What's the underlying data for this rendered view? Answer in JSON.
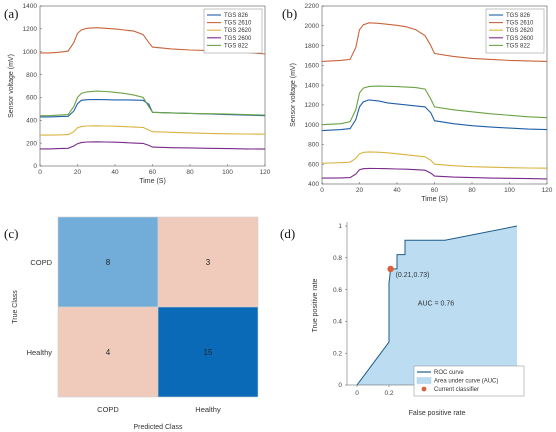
{
  "panel_labels": [
    "(a)",
    "(b)",
    "(c)",
    "(d)"
  ],
  "colors": {
    "TGS 826": "#1f5fa8",
    "TGS 2610": "#c8643a",
    "TGS 2620": "#d8b340",
    "TGS 2600": "#7a2a8a",
    "TGS 822": "#6aa344",
    "cm_high": "#0a6ab8",
    "cm_mid": "#72acd8",
    "cm_low": "#f0cbbb",
    "roc_line": "#1e5c8a",
    "auc_fill": "#bcdcf2",
    "classifier": "#d9603b"
  },
  "chart_data": [
    {
      "type": "line",
      "panel": "(a)",
      "xlabel": "Time (S)",
      "ylabel": "Sensor voltage (mV)",
      "xlim": [
        0,
        120
      ],
      "ylim": [
        0,
        1400
      ],
      "xticks": [
        0,
        20,
        40,
        60,
        80,
        100,
        120
      ],
      "yticks": [
        0,
        200,
        400,
        600,
        800,
        1000,
        1200,
        1400
      ],
      "legend": "top-right",
      "series": [
        {
          "name": "TGS 826",
          "x": [
            0,
            5,
            10,
            15,
            18,
            20,
            22,
            25,
            30,
            35,
            40,
            45,
            50,
            55,
            58,
            60,
            70,
            80,
            90,
            100,
            110,
            120
          ],
          "y": [
            430,
            430,
            432,
            435,
            480,
            545,
            575,
            580,
            582,
            580,
            578,
            578,
            577,
            575,
            540,
            470,
            465,
            460,
            455,
            450,
            445,
            440
          ]
        },
        {
          "name": "TGS 2610",
          "x": [
            0,
            5,
            10,
            15,
            18,
            20,
            22,
            25,
            30,
            35,
            40,
            45,
            50,
            55,
            58,
            60,
            70,
            80,
            90,
            100,
            110,
            120
          ],
          "y": [
            990,
            990,
            995,
            1005,
            1080,
            1160,
            1190,
            1205,
            1210,
            1205,
            1200,
            1190,
            1180,
            1150,
            1080,
            1040,
            1025,
            1015,
            1010,
            1005,
            995,
            980
          ]
        },
        {
          "name": "TGS 2620",
          "x": [
            0,
            5,
            10,
            15,
            18,
            20,
            22,
            25,
            30,
            35,
            40,
            45,
            50,
            55,
            58,
            60,
            70,
            80,
            90,
            100,
            110,
            120
          ],
          "y": [
            270,
            270,
            272,
            275,
            300,
            335,
            345,
            350,
            352,
            350,
            348,
            345,
            340,
            338,
            315,
            300,
            295,
            290,
            285,
            282,
            280,
            278
          ]
        },
        {
          "name": "TGS 2600",
          "x": [
            0,
            5,
            10,
            15,
            18,
            20,
            22,
            25,
            30,
            35,
            40,
            45,
            50,
            55,
            58,
            60,
            70,
            80,
            90,
            100,
            110,
            120
          ],
          "y": [
            150,
            150,
            152,
            155,
            175,
            195,
            205,
            210,
            212,
            210,
            208,
            205,
            200,
            198,
            180,
            165,
            160,
            158,
            155,
            152,
            150,
            148
          ]
        },
        {
          "name": "TGS 822",
          "x": [
            0,
            5,
            10,
            15,
            18,
            20,
            22,
            25,
            30,
            35,
            40,
            45,
            50,
            55,
            58,
            60,
            70,
            80,
            90,
            100,
            110,
            120
          ],
          "y": [
            440,
            440,
            445,
            450,
            520,
            600,
            635,
            648,
            655,
            652,
            645,
            635,
            620,
            600,
            520,
            470,
            465,
            460,
            458,
            455,
            450,
            445
          ]
        }
      ]
    },
    {
      "type": "line",
      "panel": "(b)",
      "xlabel": "Time (S)",
      "ylabel": "Sensor voltage (mV)",
      "xlim": [
        0,
        120
      ],
      "ylim": [
        400,
        2200
      ],
      "xticks": [
        0,
        20,
        40,
        60,
        80,
        100,
        120
      ],
      "yticks": [
        400,
        600,
        800,
        1000,
        1200,
        1400,
        1600,
        1800,
        2000,
        2200
      ],
      "legend": "top-right",
      "series": [
        {
          "name": "TGS 826",
          "x": [
            0,
            5,
            10,
            15,
            18,
            20,
            22,
            25,
            30,
            35,
            40,
            45,
            50,
            55,
            58,
            60,
            70,
            80,
            90,
            100,
            110,
            120
          ],
          "y": [
            940,
            945,
            950,
            960,
            1050,
            1180,
            1230,
            1250,
            1240,
            1220,
            1210,
            1200,
            1190,
            1180,
            1120,
            1040,
            1010,
            990,
            975,
            965,
            955,
            950
          ]
        },
        {
          "name": "TGS 2610",
          "x": [
            0,
            5,
            10,
            15,
            18,
            20,
            22,
            25,
            30,
            35,
            40,
            45,
            50,
            55,
            58,
            60,
            70,
            80,
            90,
            100,
            110,
            120
          ],
          "y": [
            1640,
            1645,
            1650,
            1660,
            1780,
            1960,
            2010,
            2030,
            2025,
            2015,
            2005,
            1990,
            1960,
            1900,
            1800,
            1720,
            1690,
            1670,
            1660,
            1650,
            1645,
            1640
          ]
        },
        {
          "name": "TGS 2620",
          "x": [
            0,
            5,
            10,
            15,
            18,
            20,
            22,
            25,
            30,
            35,
            40,
            45,
            50,
            55,
            58,
            60,
            70,
            80,
            90,
            100,
            110,
            120
          ],
          "y": [
            610,
            612,
            615,
            620,
            660,
            705,
            720,
            725,
            722,
            715,
            705,
            695,
            685,
            675,
            640,
            600,
            585,
            575,
            570,
            565,
            562,
            560
          ]
        },
        {
          "name": "TGS 2600",
          "x": [
            0,
            5,
            10,
            15,
            18,
            20,
            22,
            25,
            30,
            35,
            40,
            45,
            50,
            55,
            58,
            60,
            70,
            80,
            90,
            100,
            110,
            120
          ],
          "y": [
            460,
            460,
            462,
            465,
            500,
            545,
            555,
            558,
            557,
            555,
            552,
            550,
            545,
            540,
            510,
            480,
            470,
            465,
            460,
            458,
            455,
            452
          ]
        },
        {
          "name": "TGS 822",
          "x": [
            0,
            5,
            10,
            15,
            18,
            20,
            22,
            25,
            30,
            35,
            40,
            45,
            50,
            55,
            58,
            60,
            70,
            80,
            90,
            100,
            110,
            120
          ],
          "y": [
            1000,
            1005,
            1010,
            1030,
            1150,
            1320,
            1370,
            1385,
            1390,
            1388,
            1385,
            1380,
            1375,
            1360,
            1260,
            1180,
            1150,
            1130,
            1110,
            1095,
            1080,
            1070
          ]
        }
      ]
    },
    {
      "type": "heatmap",
      "panel": "(c)",
      "xlabel": "Predicted Class",
      "ylabel": "True Class",
      "categories": [
        "COPD",
        "Healthy"
      ],
      "values": [
        [
          8,
          3
        ],
        [
          4,
          15
        ]
      ]
    },
    {
      "type": "line",
      "panel": "(d)",
      "xlabel": "False positive rate",
      "ylabel": "True positive rate",
      "xlim": [
        0,
        1
      ],
      "ylim": [
        0,
        1
      ],
      "xticks": [
        0,
        0.2,
        0.4,
        0.6,
        0.8,
        1
      ],
      "xtick_labels": [
        "0",
        "0.2",
        "0.4",
        "0.6",
        "0.8",
        "1"
      ],
      "yticks": [
        0,
        0.2,
        0.4,
        0.6,
        0.8,
        1
      ],
      "ytick_labels": [
        "0",
        "0.2",
        "0.4",
        "0.6",
        "0.8",
        "1"
      ],
      "legend": "bottom-right",
      "roc": {
        "name": "ROC curve",
        "x": [
          0,
          0.2,
          0.2,
          0.21,
          0.25,
          0.25,
          0.3,
          0.3,
          0.4,
          0.55,
          1
        ],
        "y": [
          0,
          0.27,
          0.64,
          0.73,
          0.73,
          0.82,
          0.82,
          0.91,
          0.91,
          0.91,
          1
        ]
      },
      "auc_label": "Area under curve (AUC)",
      "classifier": {
        "name": "Current classifier",
        "x": 0.21,
        "y": 0.73,
        "label": "(0.21,0.73)"
      },
      "annotation": "AUC = 0.76"
    }
  ]
}
